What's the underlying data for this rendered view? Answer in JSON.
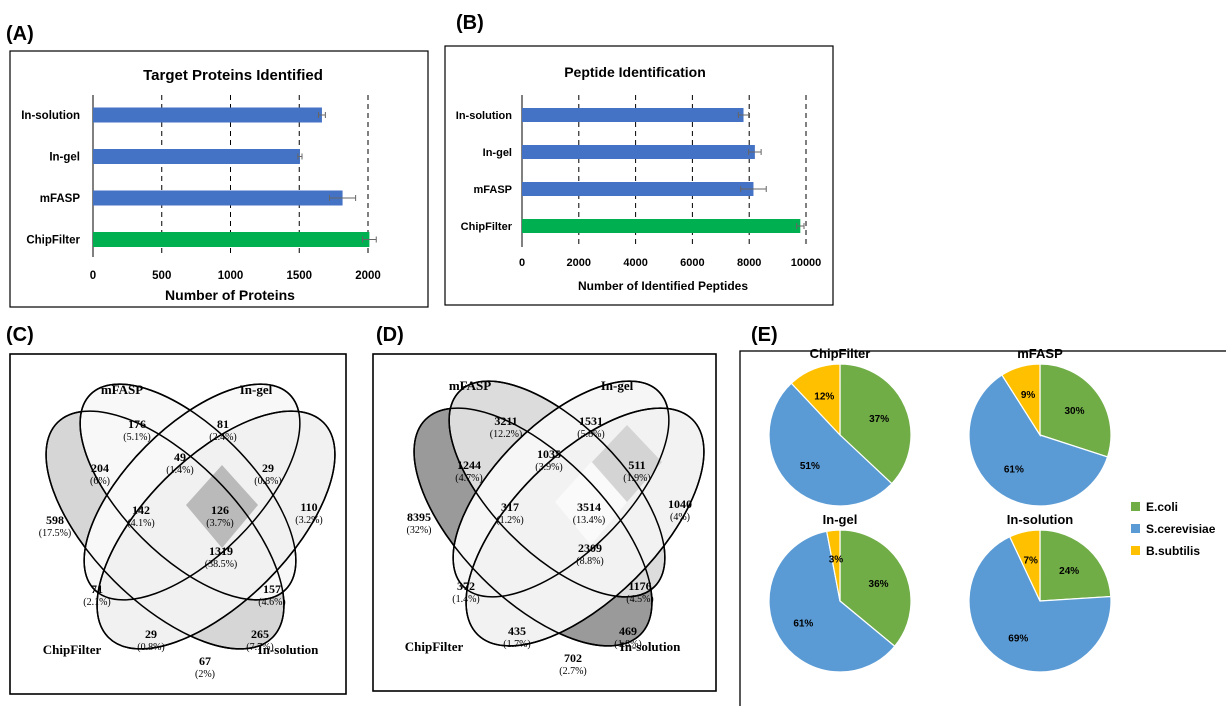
{
  "panels": {
    "a": "(A)",
    "b": "(B)",
    "c": "(C)",
    "d": "(D)",
    "e": "(E)"
  },
  "chart_data": [
    {
      "id": "A",
      "type": "bar",
      "orientation": "horizontal",
      "title": "Target Proteins Identified",
      "xlabel": "Number of Proteins",
      "ylabel": "",
      "categories": [
        "In-solution",
        "In-gel",
        "mFASP",
        "ChipFilter"
      ],
      "values": [
        1665,
        1505,
        1815,
        2010
      ],
      "errors": [
        25,
        15,
        95,
        50
      ],
      "bar_colors": [
        "#4472c4",
        "#4472c4",
        "#4472c4",
        "#00b050"
      ],
      "xlim": [
        0,
        2000
      ],
      "xticks": [
        0,
        500,
        1000,
        1500,
        2000
      ],
      "xtick_labels": [
        "0",
        "500",
        "1000",
        "1500",
        "2000"
      ],
      "grid": "vertical dashed"
    },
    {
      "id": "B",
      "type": "bar",
      "orientation": "horizontal",
      "title": "Peptide Identification",
      "xlabel": "Number of Identified Peptides",
      "ylabel": "",
      "categories": [
        "In-solution",
        "In-gel",
        "mFASP",
        "ChipFilter"
      ],
      "values": [
        7800,
        8200,
        8150,
        9800
      ],
      "errors": [
        180,
        220,
        450,
        130
      ],
      "bar_colors": [
        "#4472c4",
        "#4472c4",
        "#4472c4",
        "#00b050"
      ],
      "xlim": [
        0,
        10000
      ],
      "xticks": [
        0,
        2000,
        4000,
        6000,
        8000,
        10000
      ],
      "xtick_labels": [
        "0",
        "2000",
        "4000",
        "6000",
        "8000",
        "10000"
      ],
      "grid": "vertical dashed"
    },
    {
      "id": "C",
      "type": "venn",
      "sets": [
        "mFASP",
        "In-gel",
        "ChipFilter",
        "In-solution"
      ],
      "regions": [
        {
          "n": "176",
          "p": "(5.1%)"
        },
        {
          "n": "81",
          "p": "(2.4%)"
        },
        {
          "n": "204",
          "p": "(6%)"
        },
        {
          "n": "49",
          "p": "(1.4%)"
        },
        {
          "n": "29",
          "p": "(0.8%)"
        },
        {
          "n": "598",
          "p": "(17.5%)"
        },
        {
          "n": "142",
          "p": "(4.1%)"
        },
        {
          "n": "126",
          "p": "(3.7%)"
        },
        {
          "n": "110",
          "p": "(3.2%)"
        },
        {
          "n": "1319",
          "p": "(38.5%)"
        },
        {
          "n": "71",
          "p": "(2.1%)"
        },
        {
          "n": "157",
          "p": "(4.6%)"
        },
        {
          "n": "29",
          "p": "(0.8%)"
        },
        {
          "n": "265",
          "p": "(7.7%)"
        },
        {
          "n": "67",
          "p": "(2%)"
        }
      ]
    },
    {
      "id": "D",
      "type": "venn",
      "sets": [
        "mFASP",
        "In-gel",
        "ChipFilter",
        "In-solution"
      ],
      "regions": [
        {
          "n": "3211",
          "p": "(12.2%)"
        },
        {
          "n": "1531",
          "p": "(5.8%)"
        },
        {
          "n": "1244",
          "p": "(4.7%)"
        },
        {
          "n": "1035",
          "p": "(3.9%)"
        },
        {
          "n": "511",
          "p": "(1.9%)"
        },
        {
          "n": "8395",
          "p": "(32%)"
        },
        {
          "n": "317",
          "p": "(1.2%)"
        },
        {
          "n": "3514",
          "p": "(13.4%)"
        },
        {
          "n": "1040",
          "p": "(4%)"
        },
        {
          "n": "2309",
          "p": "(8.8%)"
        },
        {
          "n": "372",
          "p": "(1.4%)"
        },
        {
          "n": "1176",
          "p": "(4.5%)"
        },
        {
          "n": "435",
          "p": "(1.7%)"
        },
        {
          "n": "469",
          "p": "(1.8%)"
        },
        {
          "n": "702",
          "p": "(2.7%)"
        }
      ]
    },
    {
      "id": "E",
      "type": "pie",
      "legend": [
        "E.coli",
        "S.cerevisiae",
        "B.subtilis"
      ],
      "legend_colors": [
        "#70ad47",
        "#5b9bd5",
        "#ffc000"
      ],
      "legend_placement": "right",
      "pies": [
        {
          "title": "ChipFilter",
          "values": [
            37,
            51,
            12
          ],
          "labels": [
            "37%",
            "51%",
            "12%"
          ]
        },
        {
          "title": "mFASP",
          "values": [
            30,
            61,
            9
          ],
          "labels": [
            "30%",
            "61%",
            "9%"
          ]
        },
        {
          "title": "In-gel",
          "values": [
            36,
            61,
            3
          ],
          "labels": [
            "36%",
            "61%",
            "3%"
          ]
        },
        {
          "title": "In-solution",
          "values": [
            24,
            69,
            7
          ],
          "labels": [
            "24%",
            "69%",
            "7%"
          ]
        }
      ]
    }
  ]
}
